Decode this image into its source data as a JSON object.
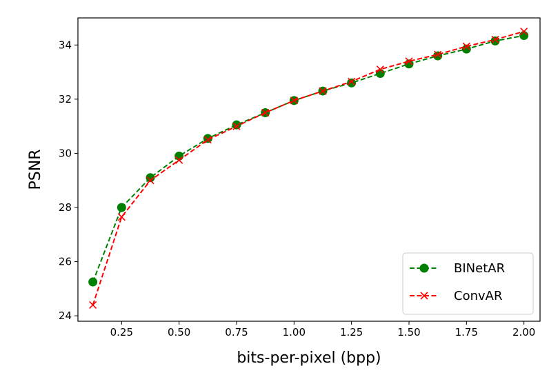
{
  "chart_data": {
    "type": "line",
    "title": "",
    "xlabel": "bits-per-pixel (bpp)",
    "ylabel": "PSNR",
    "xlim": [
      0.06,
      2.07
    ],
    "ylim": [
      23.8,
      35.0
    ],
    "xticks": [
      0.25,
      0.5,
      0.75,
      1.0,
      1.25,
      1.5,
      1.75,
      2.0
    ],
    "xtick_labels": [
      "0.25",
      "0.50",
      "0.75",
      "1.00",
      "1.25",
      "1.50",
      "1.75",
      "2.00"
    ],
    "yticks": [
      24,
      26,
      28,
      30,
      32,
      34
    ],
    "ytick_labels": [
      "24",
      "26",
      "28",
      "30",
      "32",
      "34"
    ],
    "grid": false,
    "legend_position": "bottom-right",
    "x": [
      0.125,
      0.25,
      0.375,
      0.5,
      0.625,
      0.75,
      0.875,
      1.0,
      1.125,
      1.25,
      1.375,
      1.5,
      1.625,
      1.75,
      1.875,
      2.0
    ],
    "series": [
      {
        "name": "BINetAR",
        "color": "#008000",
        "marker": "circle",
        "line_style": "dashed",
        "values": [
          25.25,
          28.0,
          29.1,
          29.9,
          30.55,
          31.05,
          31.5,
          31.95,
          32.3,
          32.6,
          32.95,
          33.3,
          33.6,
          33.85,
          34.15,
          34.35
        ]
      },
      {
        "name": "ConvAR",
        "color": "#ff0000",
        "marker": "x",
        "line_style": "dashed",
        "values": [
          24.4,
          27.65,
          29.0,
          29.75,
          30.5,
          31.0,
          31.5,
          31.95,
          32.3,
          32.65,
          33.1,
          33.4,
          33.65,
          33.95,
          34.2,
          34.5
        ]
      }
    ]
  }
}
